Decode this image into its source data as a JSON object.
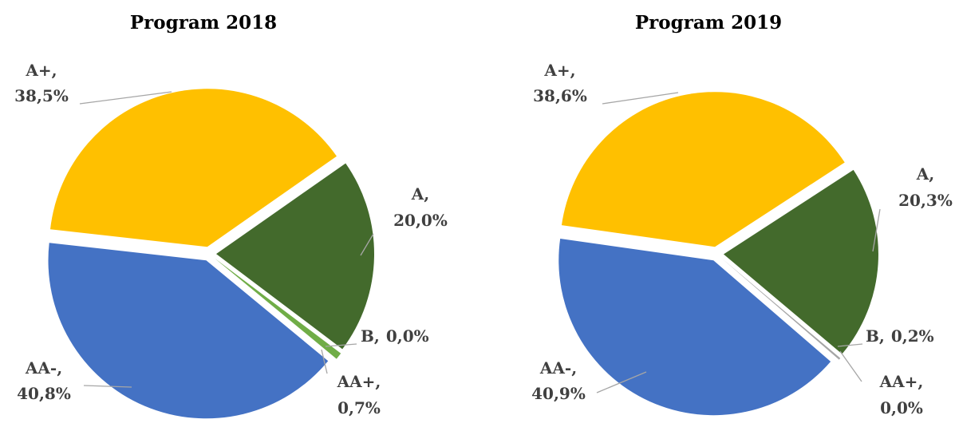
{
  "chart_data": [
    {
      "type": "pie",
      "title": "Program 2018",
      "categories": [
        "A",
        "B",
        "AA+",
        "AA-",
        "A+"
      ],
      "values": [
        20.0,
        0.0,
        0.7,
        40.8,
        38.5
      ],
      "value_labels": [
        "20,0%",
        "0,0%",
        "0,7%",
        "40,8%",
        "38,5%"
      ],
      "label_separator": ",",
      "colors": [
        "#436a2c",
        "#a5a5a5",
        "#70ad47",
        "#4472c4",
        "#ffc000"
      ]
    },
    {
      "type": "pie",
      "title": "Program 2019",
      "categories": [
        "A",
        "B",
        "AA+",
        "AA-",
        "A+"
      ],
      "values": [
        20.3,
        0.2,
        0.0,
        40.9,
        38.6
      ],
      "value_labels": [
        "20,3%",
        "0,2%",
        "0,0%",
        "40,9%",
        "38,6%"
      ],
      "label_separator": ",",
      "colors": [
        "#436a2c",
        "#a5a5a5",
        "#70ad47",
        "#4472c4",
        "#ffc000"
      ]
    }
  ]
}
